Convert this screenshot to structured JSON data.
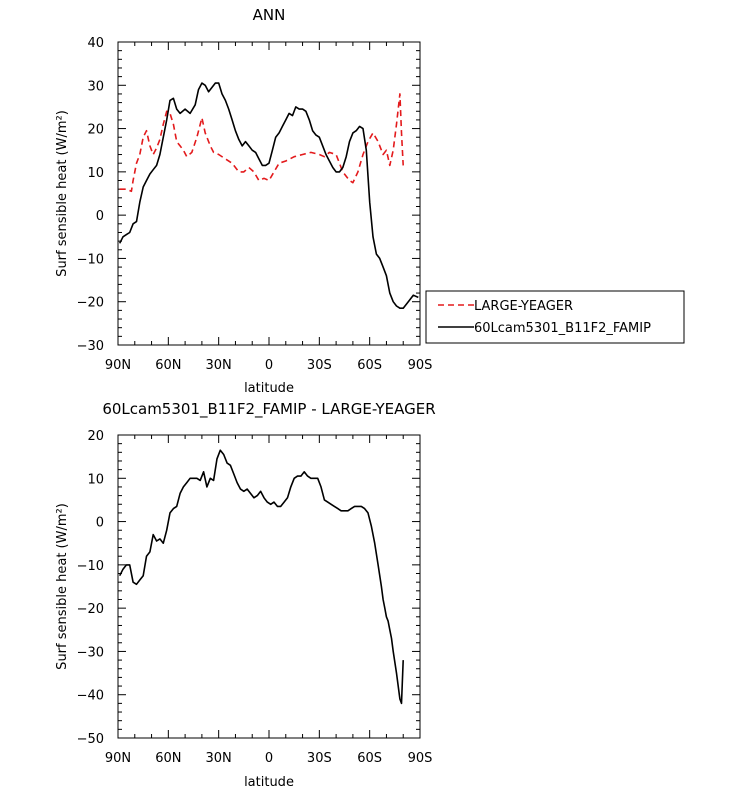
{
  "colors": {
    "model": "#000000",
    "obs": "#e31a1c",
    "axis": "#000000"
  },
  "chart_data": [
    {
      "type": "line",
      "title": "ANN",
      "xlabel": "latitude",
      "ylabel": "Surf sensible heat (W/m²)",
      "xlim": [
        90,
        -90
      ],
      "ylim": [
        -30,
        40
      ],
      "x_tick_labels": [
        "90N",
        "60N",
        "30N",
        "0",
        "30S",
        "60S",
        "90S"
      ],
      "x_tick_values": [
        90,
        60,
        30,
        0,
        -30,
        -60,
        -90
      ],
      "y_ticks": [
        -30,
        -20,
        -10,
        0,
        10,
        20,
        30,
        40
      ],
      "legend_position": "right",
      "series": [
        {
          "name": "LARGE-YEAGER",
          "color": "#e31a1c",
          "dash": "dashed",
          "x": [
            89,
            85,
            82,
            81,
            79,
            77,
            75,
            73,
            71,
            69,
            67,
            65,
            63,
            61,
            59,
            57,
            55,
            53,
            51,
            49,
            46,
            43,
            40,
            38,
            35,
            33,
            30,
            26,
            22,
            18,
            15,
            12,
            9,
            6,
            3,
            0,
            -3,
            -6,
            -10,
            -15,
            -20,
            -25,
            -30,
            -33,
            -36,
            -40,
            -44,
            -48,
            -50,
            -53,
            -56,
            -59,
            -62,
            -65,
            -67,
            -68,
            -70,
            -72,
            -74,
            -76,
            -78,
            -79,
            -80
          ],
          "y": [
            6,
            6,
            5.5,
            8,
            12,
            14,
            18,
            19.5,
            16,
            14,
            15.5,
            17.5,
            21,
            24,
            23.5,
            21,
            17,
            16,
            15,
            13.5,
            14.5,
            18,
            22.5,
            19,
            16,
            14.5,
            14,
            13,
            12,
            10,
            10,
            11,
            10,
            8,
            8.5,
            8,
            10,
            12,
            12.5,
            13.5,
            14,
            14.5,
            14,
            13.5,
            14.5,
            14,
            10,
            8,
            7.5,
            10,
            14,
            17,
            19,
            17,
            15,
            14,
            15,
            11.5,
            15,
            21,
            28,
            19,
            11.5
          ]
        },
        {
          "name": "60Lcam5301_B11F2_FAMIP",
          "color": "#000000",
          "dash": "solid",
          "x": [
            89,
            87,
            85,
            83,
            81,
            79,
            77,
            75,
            73,
            71,
            69,
            67,
            65,
            63,
            61,
            59,
            57,
            55,
            53,
            50,
            47,
            44,
            42,
            40,
            38,
            36,
            34,
            32,
            30,
            28,
            26,
            24,
            22,
            20,
            18,
            16,
            14,
            12,
            10,
            8,
            6,
            4,
            2,
            0,
            -2,
            -4,
            -6,
            -8,
            -10,
            -12,
            -14,
            -16,
            -18,
            -20,
            -22,
            -24,
            -26,
            -28,
            -30,
            -32,
            -34,
            -36,
            -38,
            -40,
            -42,
            -44,
            -46,
            -48,
            -50,
            -52,
            -54,
            -56,
            -58,
            -60,
            -62,
            -64,
            -66,
            -68,
            -70,
            -72,
            -74,
            -76,
            -78,
            -80,
            -83,
            -86,
            -89
          ],
          "y": [
            -6.5,
            -5,
            -4.5,
            -4,
            -2,
            -1.5,
            3,
            6.5,
            8,
            9.5,
            10.5,
            11.5,
            14,
            18,
            22,
            26.5,
            27,
            24.5,
            23.5,
            24.5,
            23.5,
            25.5,
            29,
            30.5,
            30,
            28.5,
            29.5,
            30.5,
            30.5,
            28,
            26.5,
            24.5,
            22,
            19.5,
            17.5,
            16,
            17,
            16,
            15,
            14.5,
            13,
            11.5,
            11.5,
            12,
            15,
            18,
            19,
            20.5,
            22,
            23.5,
            23,
            25,
            24.5,
            24.5,
            24,
            22,
            19.5,
            18.5,
            18,
            16,
            14,
            12.5,
            11,
            10,
            10,
            11,
            13.5,
            17,
            19,
            19.5,
            20.5,
            20,
            15,
            3,
            -5,
            -9,
            -10,
            -12,
            -14,
            -18,
            -20,
            -21,
            -21.5,
            -21.5,
            -20,
            -18.5,
            -19
          ]
        }
      ]
    },
    {
      "type": "line",
      "title": "60Lcam5301_B11F2_FAMIP - LARGE-YEAGER",
      "xlabel": "latitude",
      "ylabel": "Surf sensible heat (W/m²)",
      "xlim": [
        90,
        -90
      ],
      "ylim": [
        -50,
        20
      ],
      "x_tick_labels": [
        "90N",
        "60N",
        "30N",
        "0",
        "30S",
        "60S",
        "90S"
      ],
      "x_tick_values": [
        90,
        60,
        30,
        0,
        -30,
        -60,
        -90
      ],
      "y_ticks": [
        -50,
        -40,
        -30,
        -20,
        -10,
        0,
        10,
        20
      ],
      "series": [
        {
          "name": "",
          "color": "#000000",
          "dash": "solid",
          "x": [
            89,
            87,
            85,
            83,
            81,
            79,
            77,
            75,
            73,
            71,
            69,
            67,
            65,
            63,
            61,
            59,
            57,
            55,
            53,
            51,
            49,
            47,
            45,
            43,
            41,
            39,
            37,
            35,
            33,
            31,
            29,
            27,
            25,
            23,
            21,
            19,
            17,
            15,
            13,
            11,
            9,
            7,
            5,
            3,
            1,
            -1,
            -3,
            -5,
            -7,
            -9,
            -11,
            -13,
            -15,
            -17,
            -19,
            -21,
            -23,
            -25,
            -27,
            -29,
            -31,
            -33,
            -35,
            -37,
            -39,
            -41,
            -43,
            -45,
            -47,
            -49,
            -51,
            -53,
            -55,
            -57,
            -59,
            -61,
            -63,
            -65,
            -67,
            -68,
            -69,
            -70,
            -71,
            -72,
            -73,
            -74,
            -76,
            -78,
            -79,
            -80
          ],
          "y": [
            -12.5,
            -11,
            -10,
            -10,
            -14,
            -14.5,
            -13.5,
            -12.5,
            -8,
            -7,
            -3,
            -4.5,
            -4,
            -5,
            -2,
            2,
            3,
            3.5,
            6.5,
            8,
            9,
            10,
            10,
            10,
            9.5,
            11.5,
            8,
            10,
            9.5,
            14.5,
            16.5,
            15.5,
            13.5,
            13,
            11,
            9,
            7.5,
            7,
            7.5,
            6.5,
            5.5,
            6,
            7,
            5.5,
            4.5,
            4,
            4.5,
            3.5,
            3.5,
            4.5,
            5.5,
            8,
            10,
            10.5,
            10.5,
            11.5,
            10.5,
            10,
            10,
            10,
            8,
            5,
            4.5,
            4,
            3.5,
            3,
            2.5,
            2.5,
            2.5,
            3,
            3.5,
            3.5,
            3.5,
            3,
            2,
            -1,
            -5,
            -10,
            -15,
            -18,
            -20,
            -22,
            -23,
            -25,
            -27,
            -30,
            -35,
            -41,
            -42,
            -32
          ]
        }
      ]
    }
  ]
}
